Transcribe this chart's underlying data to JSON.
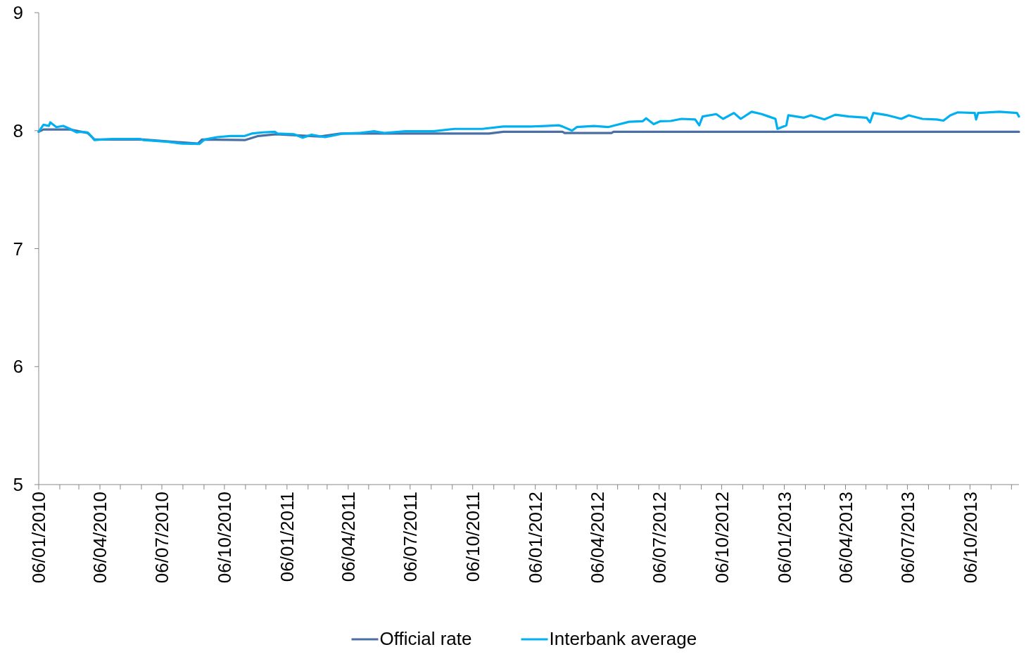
{
  "chart_data": {
    "type": "line",
    "xlim": [
      "2010-01-06",
      "2013-12-17"
    ],
    "ylim": [
      5,
      9
    ],
    "yticks": [
      5,
      6,
      7,
      8,
      9
    ],
    "xticks": [
      {
        "value": "2010-01-06",
        "label": "06/01/2010"
      },
      {
        "value": "2010-02-06",
        "label": null
      },
      {
        "value": "2010-03-06",
        "label": null
      },
      {
        "value": "2010-04-06",
        "label": "06/04/2010"
      },
      {
        "value": "2010-05-06",
        "label": null
      },
      {
        "value": "2010-06-06",
        "label": null
      },
      {
        "value": "2010-07-06",
        "label": "06/07/2010"
      },
      {
        "value": "2010-08-06",
        "label": null
      },
      {
        "value": "2010-09-06",
        "label": null
      },
      {
        "value": "2010-10-06",
        "label": "06/10/2010"
      },
      {
        "value": "2010-11-06",
        "label": null
      },
      {
        "value": "2010-12-06",
        "label": null
      },
      {
        "value": "2011-01-06",
        "label": "06/01/2011"
      },
      {
        "value": "2011-02-06",
        "label": null
      },
      {
        "value": "2011-03-06",
        "label": null
      },
      {
        "value": "2011-04-06",
        "label": "06/04/2011"
      },
      {
        "value": "2011-05-06",
        "label": null
      },
      {
        "value": "2011-06-06",
        "label": null
      },
      {
        "value": "2011-07-06",
        "label": "06/07/2011"
      },
      {
        "value": "2011-08-06",
        "label": null
      },
      {
        "value": "2011-09-06",
        "label": null
      },
      {
        "value": "2011-10-06",
        "label": "06/10/2011"
      },
      {
        "value": "2011-11-06",
        "label": null
      },
      {
        "value": "2011-12-06",
        "label": null
      },
      {
        "value": "2012-01-06",
        "label": "06/01/2012"
      },
      {
        "value": "2012-02-06",
        "label": null
      },
      {
        "value": "2012-03-06",
        "label": null
      },
      {
        "value": "2012-04-06",
        "label": "06/04/2012"
      },
      {
        "value": "2012-05-06",
        "label": null
      },
      {
        "value": "2012-06-06",
        "label": null
      },
      {
        "value": "2012-07-06",
        "label": "06/07/2012"
      },
      {
        "value": "2012-08-06",
        "label": null
      },
      {
        "value": "2012-09-06",
        "label": null
      },
      {
        "value": "2012-10-06",
        "label": "06/10/2012"
      },
      {
        "value": "2012-11-06",
        "label": null
      },
      {
        "value": "2012-12-06",
        "label": null
      },
      {
        "value": "2013-01-06",
        "label": "06/01/2013"
      },
      {
        "value": "2013-02-06",
        "label": null
      },
      {
        "value": "2013-03-06",
        "label": null
      },
      {
        "value": "2013-04-06",
        "label": "06/04/2013"
      },
      {
        "value": "2013-05-06",
        "label": null
      },
      {
        "value": "2013-06-06",
        "label": null
      },
      {
        "value": "2013-07-06",
        "label": "06/07/2013"
      },
      {
        "value": "2013-08-06",
        "label": null
      },
      {
        "value": "2013-09-06",
        "label": null
      },
      {
        "value": "2013-10-06",
        "label": "06/10/2013"
      },
      {
        "value": "2013-11-06",
        "label": null
      },
      {
        "value": "2013-12-06",
        "label": null
      }
    ],
    "legend": "bottom",
    "grid": false,
    "marker": "none",
    "line_style": "solid",
    "series": [
      {
        "name": "Official rate",
        "color": "#4a6fa5",
        "x": [
          "2010-01-06",
          "2010-01-13",
          "2010-02-21",
          "2010-03-19",
          "2010-03-29",
          "2010-06-09",
          "2010-08-28",
          "2010-09-03",
          "2010-11-05",
          "2010-11-25",
          "2010-12-21",
          "2011-02-23",
          "2011-03-26",
          "2011-10-30",
          "2011-11-20",
          "2012-02-15",
          "2012-02-18",
          "2012-04-27",
          "2012-04-30",
          "2013-12-17"
        ],
        "values": [
          7.99,
          8.01,
          8.01,
          7.98,
          7.925,
          7.925,
          7.89,
          7.925,
          7.92,
          7.955,
          7.97,
          7.95,
          7.975,
          7.975,
          7.99,
          7.99,
          7.98,
          7.98,
          7.99,
          7.99
        ]
      },
      {
        "name": "Interbank average",
        "color": "#00b0f0",
        "x": [
          "2010-01-06",
          "2010-01-13",
          "2010-01-21",
          "2010-01-23",
          "2010-02-01",
          "2010-02-11",
          "2010-02-21",
          "2010-03-03",
          "2010-03-09",
          "2010-03-19",
          "2010-03-24",
          "2010-03-29",
          "2010-04-24",
          "2010-06-04",
          "2010-06-09",
          "2010-07-15",
          "2010-08-05",
          "2010-08-30",
          "2010-09-07",
          "2010-09-25",
          "2010-10-15",
          "2010-11-05",
          "2010-11-15",
          "2010-12-01",
          "2010-12-19",
          "2010-12-23",
          "2011-01-16",
          "2011-01-29",
          "2011-02-11",
          "2011-03-03",
          "2011-03-29",
          "2011-04-23",
          "2011-05-14",
          "2011-05-29",
          "2011-06-29",
          "2011-08-09",
          "2011-09-09",
          "2011-10-20",
          "2011-11-20",
          "2011-12-31",
          "2012-01-21",
          "2012-02-10",
          "2012-02-15",
          "2012-02-29",
          "2012-03-07",
          "2012-04-01",
          "2012-04-22",
          "2012-05-02",
          "2012-05-23",
          "2012-06-12",
          "2012-06-17",
          "2012-06-28",
          "2012-07-08",
          "2012-07-23",
          "2012-08-08",
          "2012-08-28",
          "2012-09-03",
          "2012-09-08",
          "2012-09-28",
          "2012-10-08",
          "2012-10-24",
          "2012-11-03",
          "2012-11-19",
          "2012-12-04",
          "2012-12-14",
          "2012-12-24",
          "2012-12-27",
          "2013-01-09",
          "2013-01-12",
          "2013-02-04",
          "2013-02-14",
          "2013-03-06",
          "2013-03-22",
          "2013-04-11",
          "2013-05-07",
          "2013-05-12",
          "2013-05-17",
          "2013-06-07",
          "2013-06-27",
          "2013-07-08",
          "2013-07-28",
          "2013-08-18",
          "2013-08-28",
          "2013-09-07",
          "2013-09-18",
          "2013-10-13",
          "2013-10-15",
          "2013-10-18",
          "2013-11-18",
          "2013-12-14",
          "2013-12-17"
        ],
        "values": [
          7.99,
          8.05,
          8.04,
          8.07,
          8.03,
          8.04,
          8.015,
          7.985,
          7.99,
          7.985,
          7.955,
          7.92,
          7.93,
          7.93,
          7.92,
          7.905,
          7.89,
          7.887,
          7.925,
          7.945,
          7.955,
          7.955,
          7.975,
          7.985,
          7.99,
          7.975,
          7.97,
          7.94,
          7.965,
          7.945,
          7.975,
          7.98,
          7.995,
          7.98,
          7.995,
          7.995,
          8.015,
          8.015,
          8.035,
          8.035,
          8.04,
          8.045,
          8.035,
          8.0,
          8.03,
          8.04,
          8.03,
          8.045,
          8.075,
          8.08,
          8.105,
          8.055,
          8.08,
          8.082,
          8.1,
          8.095,
          8.045,
          8.12,
          8.14,
          8.1,
          8.15,
          8.1,
          8.16,
          8.14,
          8.12,
          8.1,
          8.015,
          8.045,
          8.13,
          8.11,
          8.13,
          8.095,
          8.135,
          8.12,
          8.11,
          8.07,
          8.15,
          8.13,
          8.1,
          8.13,
          8.1,
          8.095,
          8.085,
          8.13,
          8.155,
          8.15,
          8.095,
          8.15,
          8.16,
          8.15,
          8.12
        ]
      }
    ]
  }
}
